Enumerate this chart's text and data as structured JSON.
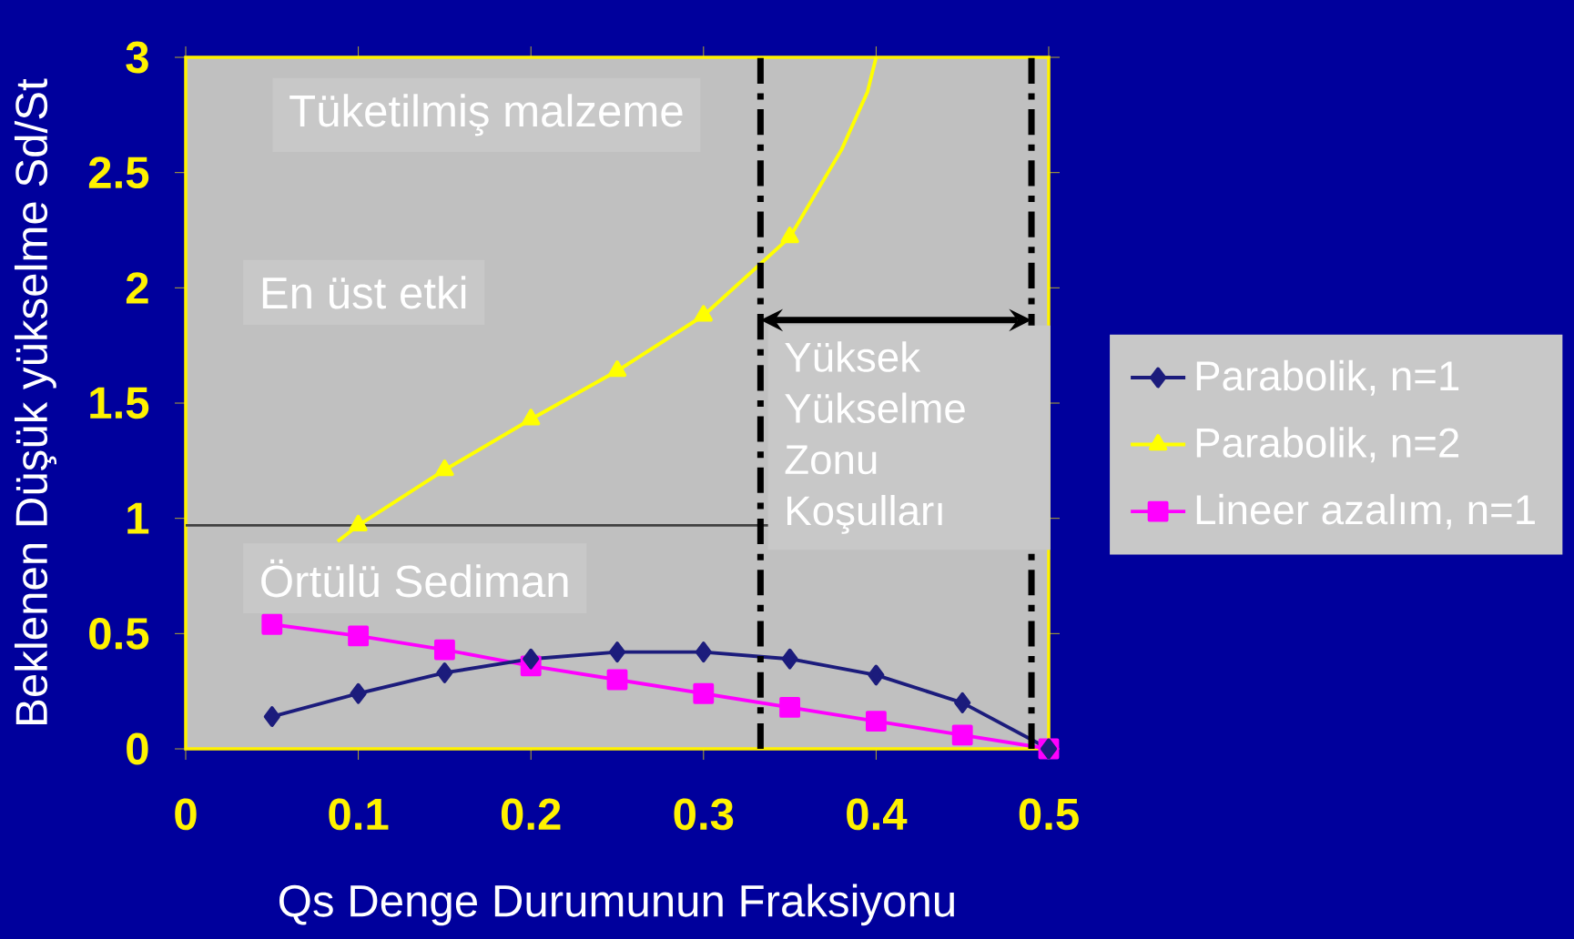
{
  "chart_data": {
    "type": "line",
    "xlabel": "Qs Denge Durumunun Fraksiyonu",
    "ylabel": "Beklenen Düşük yükselme Sd/St",
    "xlim": [
      0,
      0.5
    ],
    "ylim": [
      0,
      3
    ],
    "xticks": [
      0,
      0.1,
      0.2,
      0.3,
      0.4,
      0.5
    ],
    "yticks": [
      0,
      0.5,
      1,
      1.5,
      2,
      2.5,
      3
    ],
    "legend": "right",
    "series": [
      {
        "name": "Parabolik, n=1",
        "color": "#1c1c7c",
        "marker": "diamond",
        "x": [
          0.05,
          0.1,
          0.15,
          0.2,
          0.25,
          0.3,
          0.35,
          0.4,
          0.45,
          0.5
        ],
        "values": [
          0.14,
          0.24,
          0.33,
          0.39,
          0.42,
          0.42,
          0.39,
          0.32,
          0.2,
          0
        ]
      },
      {
        "name": "Parabolik, n=2",
        "color": "#ffff00",
        "marker": "triangle",
        "x": [
          0.1,
          0.15,
          0.2,
          0.25,
          0.3,
          0.35
        ],
        "values": [
          0.97,
          1.21,
          1.43,
          1.64,
          1.88,
          2.22
        ]
      },
      {
        "color": "#ffff00",
        "marker": "none",
        "x": [
          0.088,
          0.1
        ],
        "values": [
          0.9,
          0.97
        ]
      },
      {
        "color": "#ffff00",
        "marker": "none",
        "x": [
          0.35,
          0.38,
          0.395,
          0.4
        ],
        "values": [
          2.22,
          2.6,
          2.85,
          3.0
        ]
      },
      {
        "name": "Lineer azalım, n=1",
        "color": "#ff00ff",
        "marker": "square",
        "x": [
          0.05,
          0.1,
          0.15,
          0.2,
          0.25,
          0.3,
          0.35,
          0.4,
          0.45,
          0.5
        ],
        "values": [
          0.54,
          0.49,
          0.43,
          0.36,
          0.3,
          0.24,
          0.18,
          0.12,
          0.06,
          0
        ]
      }
    ],
    "ref_lines": [
      {
        "axis": "y",
        "value": 0.97,
        "color": "#404040",
        "line_style": "solid"
      },
      {
        "axis": "x",
        "value": 0.333,
        "color": "#000000",
        "line_style": "dashed"
      },
      {
        "axis": "x",
        "value": 0.49,
        "color": "#000000",
        "line_style": "dashed"
      }
    ],
    "annotations": [
      "Tüketilmiş malzeme",
      "En üst etki",
      "Örtülü Sediman",
      "Yüksek Yükselme Zonu Koşulları"
    ]
  }
}
